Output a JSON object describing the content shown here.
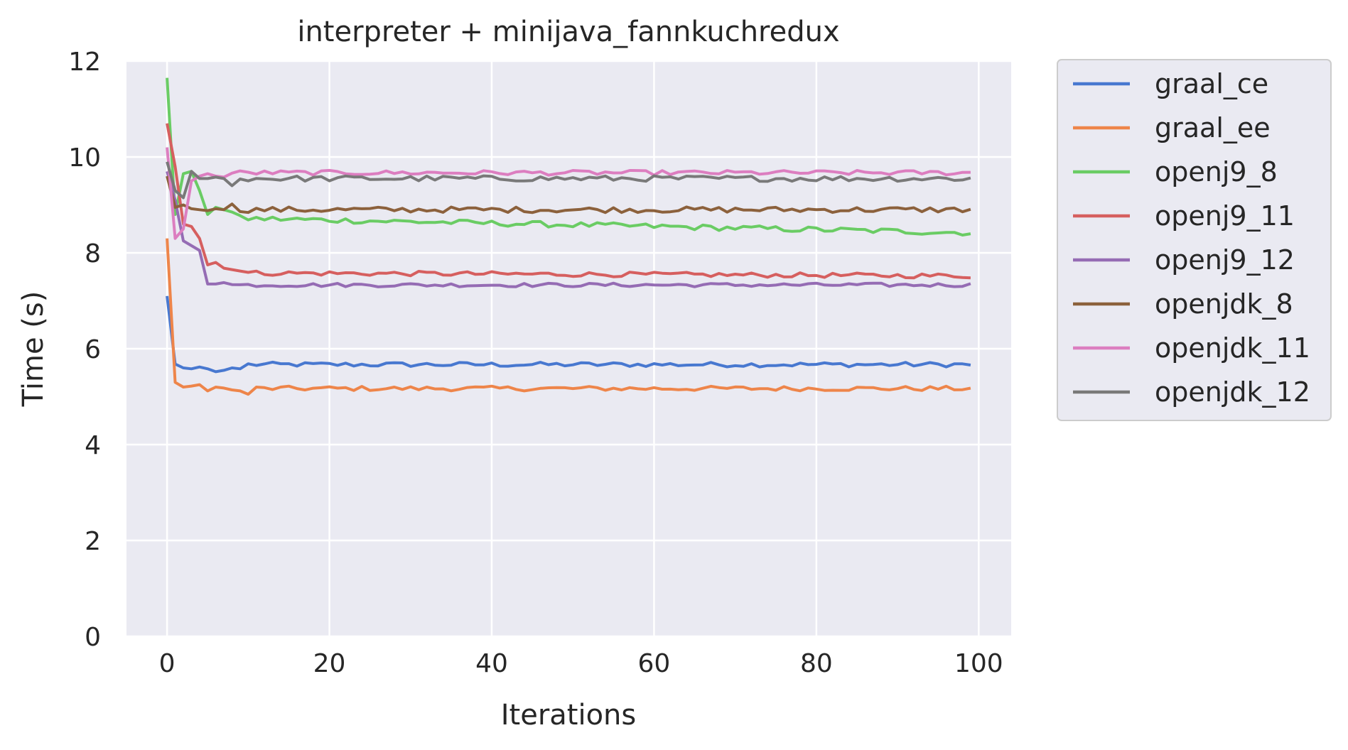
{
  "chart_data": {
    "type": "line",
    "title": "interpreter + minijava_fannkuchredux",
    "xlabel": "Iterations",
    "ylabel": "Time (s)",
    "xlim": [
      -5,
      104
    ],
    "ylim": [
      0,
      12
    ],
    "xticks": [
      0,
      20,
      40,
      60,
      80,
      100
    ],
    "yticks": [
      0,
      2,
      4,
      6,
      8,
      10,
      12
    ],
    "xtick_labels": [
      "0",
      "20",
      "40",
      "60",
      "80",
      "100"
    ],
    "ytick_labels": [
      "0",
      "2",
      "4",
      "6",
      "8",
      "10",
      "12"
    ],
    "grid": true,
    "legend_position": "outside-right",
    "background": "#eaeaf2",
    "series": [
      {
        "name": "graal_ce",
        "color": "#4878d0",
        "head": [
          7.1,
          5.68,
          5.6,
          5.58,
          5.62,
          5.58,
          5.52,
          5.55,
          5.6,
          5.58
        ],
        "level": 5.67,
        "noise": 0.05
      },
      {
        "name": "graal_ee",
        "color": "#ee854a",
        "head": [
          8.3,
          5.3,
          5.2,
          5.22,
          5.25,
          5.12,
          5.2,
          5.18,
          5.14,
          5.12,
          5.05
        ],
        "level": 5.17,
        "noise": 0.05
      },
      {
        "name": "openj9_8",
        "color": "#6acc64",
        "head": [
          11.65,
          8.8,
          9.65,
          9.7,
          9.3,
          8.8,
          8.95,
          8.9,
          8.85
        ],
        "level": 8.72,
        "end": 8.42,
        "noise": 0.06
      },
      {
        "name": "openj9_11",
        "color": "#d65f5f",
        "head": [
          10.7,
          9.8,
          8.6,
          8.55,
          8.3,
          7.75,
          7.8,
          7.68,
          7.65,
          7.62
        ],
        "level": 7.58,
        "end": 7.52,
        "noise": 0.05
      },
      {
        "name": "openj9_12",
        "color": "#956cb4",
        "head": [
          9.7,
          9.1,
          8.25,
          8.15,
          8.05,
          7.35,
          7.35,
          7.38
        ],
        "level": 7.33,
        "noise": 0.04
      },
      {
        "name": "openjdk_8",
        "color": "#8c613c",
        "head": [
          9.6,
          8.95,
          9.0,
          8.92,
          8.9,
          8.88,
          8.92,
          8.9,
          9.02
        ],
        "level": 8.9,
        "noise": 0.06
      },
      {
        "name": "openjdk_11",
        "color": "#dc7ec0",
        "head": [
          10.2,
          8.3,
          8.5,
          9.5,
          9.6,
          9.65,
          9.6,
          9.58
        ],
        "level": 9.67,
        "noise": 0.05
      },
      {
        "name": "openjdk_12",
        "color": "#797979",
        "head": [
          9.9,
          9.3,
          9.15,
          9.7,
          9.55,
          9.55,
          9.58,
          9.55,
          9.4
        ],
        "level": 9.55,
        "noise": 0.06
      }
    ]
  }
}
